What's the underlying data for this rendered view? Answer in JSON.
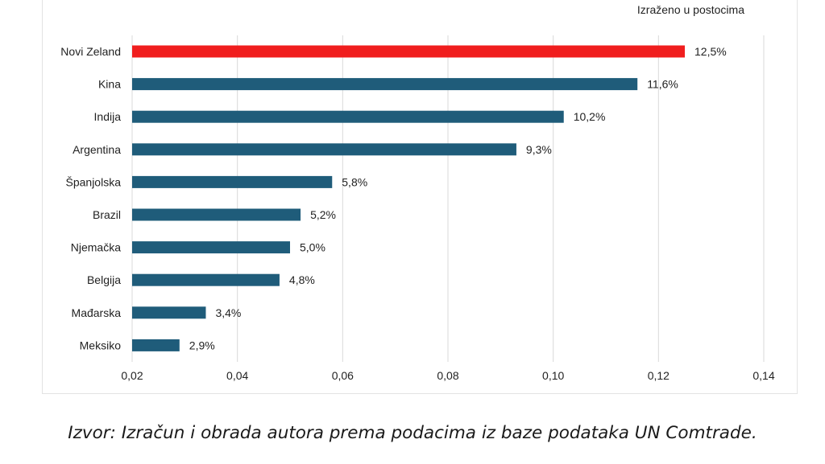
{
  "note": "Izraženo u postocima",
  "source": "Izvor: Izračun i obrada autora prema podacima iz baze podataka UN Comtrade.",
  "chart_data": {
    "type": "bar",
    "orientation": "horizontal",
    "categories": [
      "Novi Zeland",
      "Kina",
      "Indija",
      "Argentina",
      "Španjolska",
      "Brazil",
      "Njemačka",
      "Belgija",
      "Mađarska",
      "Meksiko"
    ],
    "values": [
      0.125,
      0.116,
      0.102,
      0.093,
      0.058,
      0.052,
      0.05,
      0.048,
      0.034,
      0.029
    ],
    "data_labels": [
      "12,5%",
      "11,6%",
      "10,2%",
      "9,3%",
      "5,8%",
      "5,2%",
      "5,0%",
      "4,8%",
      "3,4%",
      "2,9%"
    ],
    "xlim": [
      0.02,
      0.14
    ],
    "xticks": [
      0.02,
      0.04,
      0.06,
      0.08,
      0.1,
      0.12,
      0.14
    ],
    "xtick_labels": [
      "0,02",
      "0,04",
      "0,06",
      "0,08",
      "0,10",
      "0,12",
      "0,14"
    ],
    "grid": "vertical",
    "colors": {
      "highlight": "#f01e1e",
      "bar": "#1f5c7a",
      "grid": "#d9d9d9"
    },
    "highlight_index": 0
  }
}
